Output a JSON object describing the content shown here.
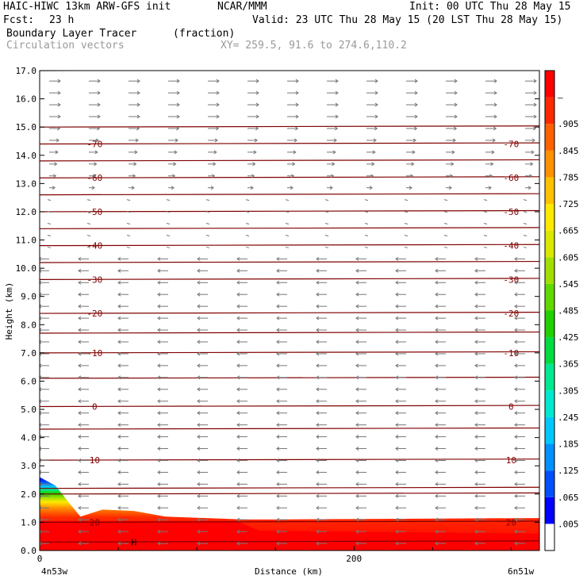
{
  "header": {
    "model": "HAIC-HIWC 13km ARW-GFS init",
    "org": "NCAR/MMM",
    "init": "Init: 00 UTC Thu 28 May 15",
    "fcst_label": "Fcst:",
    "fcst_value": "23 h",
    "valid": "Valid: 23 UTC Thu 28 May 15 (20 LST Thu 28 May 15)",
    "field1": "Boundary Layer Tracer",
    "field1_units": "(fraction)",
    "field2": "Circulation vectors",
    "xy": "XY= 259.5, 91.6 to 274.6,110.2"
  },
  "chart_data": {
    "type": "heatmap",
    "title": "Boundary Layer Tracer (fraction)",
    "ylabel": "Height (km)",
    "xlabel": "Distance (km)",
    "x_left_label": "4n53w",
    "x_right_label": "6n51w",
    "ylim": [
      0,
      17
    ],
    "xlim": [
      0,
      318
    ],
    "y_ticks": [
      "0.0",
      "1.0",
      "2.0",
      "3.0",
      "4.0",
      "5.0",
      "6.0",
      "7.0",
      "8.0",
      "9.0",
      "10.0",
      "11.0",
      "12.0",
      "13.0",
      "14.0",
      "15.0",
      "16.0",
      "17.0"
    ],
    "x_ticks": [
      {
        "value": 0,
        "label": "0"
      },
      {
        "value": 200,
        "label": "200"
      }
    ],
    "colorbar_labels": [
      ".005",
      ".065",
      ".125",
      ".185",
      ".245",
      ".305",
      ".365",
      ".425",
      ".485",
      ".545",
      ".605",
      ".665",
      ".725",
      ".785",
      ".845",
      ".905",
      "–"
    ],
    "colorbar_colors": [
      "#ffffff",
      "#0000ff",
      "#0050ff",
      "#0090ff",
      "#00c8ff",
      "#00e8d0",
      "#00e890",
      "#00dc40",
      "#20d000",
      "#60d800",
      "#a0e000",
      "#d8e800",
      "#ffe800",
      "#ffc000",
      "#ff9000",
      "#ff6000",
      "#ff2800",
      "#ff0000"
    ],
    "temperature_contours": [
      {
        "label": "20",
        "height_km": 1.0
      },
      {
        "label": "10",
        "height_km": 3.2
      },
      {
        "label": "0",
        "height_km": 5.1
      },
      {
        "label": "-10",
        "height_km": 7.0
      },
      {
        "label": "-20",
        "height_km": 8.4
      },
      {
        "label": "-30",
        "height_km": 9.6
      },
      {
        "label": "-40",
        "height_km": 10.8
      },
      {
        "label": "-50",
        "height_km": 12.0
      },
      {
        "label": "-60",
        "height_km": 13.2
      },
      {
        "label": "-70",
        "height_km": 14.4
      }
    ],
    "extra_contour_heights_km": [
      0.3,
      2.0,
      2.2,
      4.3,
      6.1,
      7.7,
      10.2,
      11.4,
      12.6,
      13.8,
      15.0,
      17.0
    ],
    "tracer_profile": [
      {
        "x": 0,
        "top_km": 2.6
      },
      {
        "x": 10,
        "top_km": 2.3
      },
      {
        "x": 20,
        "top_km": 1.6
      },
      {
        "x": 26,
        "top_km": 1.2
      },
      {
        "x": 40,
        "top_km": 1.45
      },
      {
        "x": 60,
        "top_km": 1.4
      },
      {
        "x": 80,
        "top_km": 1.2
      },
      {
        "x": 130,
        "top_km": 1.1
      },
      {
        "x": 150,
        "top_km": 1.1
      },
      {
        "x": 318,
        "top_km": 1.15
      }
    ],
    "wind_layers": [
      {
        "height_km": 0.5,
        "direction": "west"
      },
      {
        "height_km": 5.0,
        "direction": "west"
      },
      {
        "height_km": 11.5,
        "direction": "calm"
      },
      {
        "height_km": 15.0,
        "direction": "east"
      }
    ],
    "markers": [
      {
        "label": "H",
        "x": 60,
        "height_km": 0.3
      }
    ]
  }
}
